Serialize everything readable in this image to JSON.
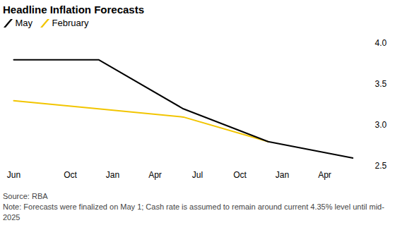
{
  "chart_data": {
    "type": "line",
    "title": "Headline Inflation Forecasts",
    "categories": [
      "Jun",
      null,
      null,
      null,
      "Oct",
      null,
      null,
      "Jan",
      null,
      null,
      "Apr",
      null,
      null,
      "Jul",
      null,
      null,
      "Oct",
      null,
      null,
      "Jan",
      null,
      null,
      "Apr",
      null,
      null
    ],
    "series": [
      {
        "name": "May",
        "color": "#000000",
        "values": [
          3.8,
          null,
          null,
          null,
          null,
          null,
          3.8,
          null,
          null,
          null,
          null,
          null,
          3.2,
          null,
          null,
          null,
          null,
          null,
          2.8,
          null,
          null,
          null,
          null,
          null,
          2.6
        ]
      },
      {
        "name": "February",
        "color": "#f2c500",
        "values": [
          3.3,
          null,
          null,
          null,
          null,
          null,
          3.2,
          null,
          null,
          null,
          null,
          null,
          3.1,
          null,
          null,
          null,
          null,
          null,
          2.8,
          null,
          null,
          null,
          null,
          null,
          null
        ]
      }
    ],
    "ylim": [
      2.5,
      4.0
    ],
    "yticks": [
      2.5,
      {
        "value": 3,
        "label": "3.0"
      },
      3.5,
      {
        "value": 4,
        "label": "4.0"
      }
    ],
    "grid": false,
    "legend": "top-left",
    "source": "Source: RBA",
    "note": "Note: Forecasts were finalized on May 1; Cash rate is assumed to remain around current 4.35% level until mid-2025"
  }
}
